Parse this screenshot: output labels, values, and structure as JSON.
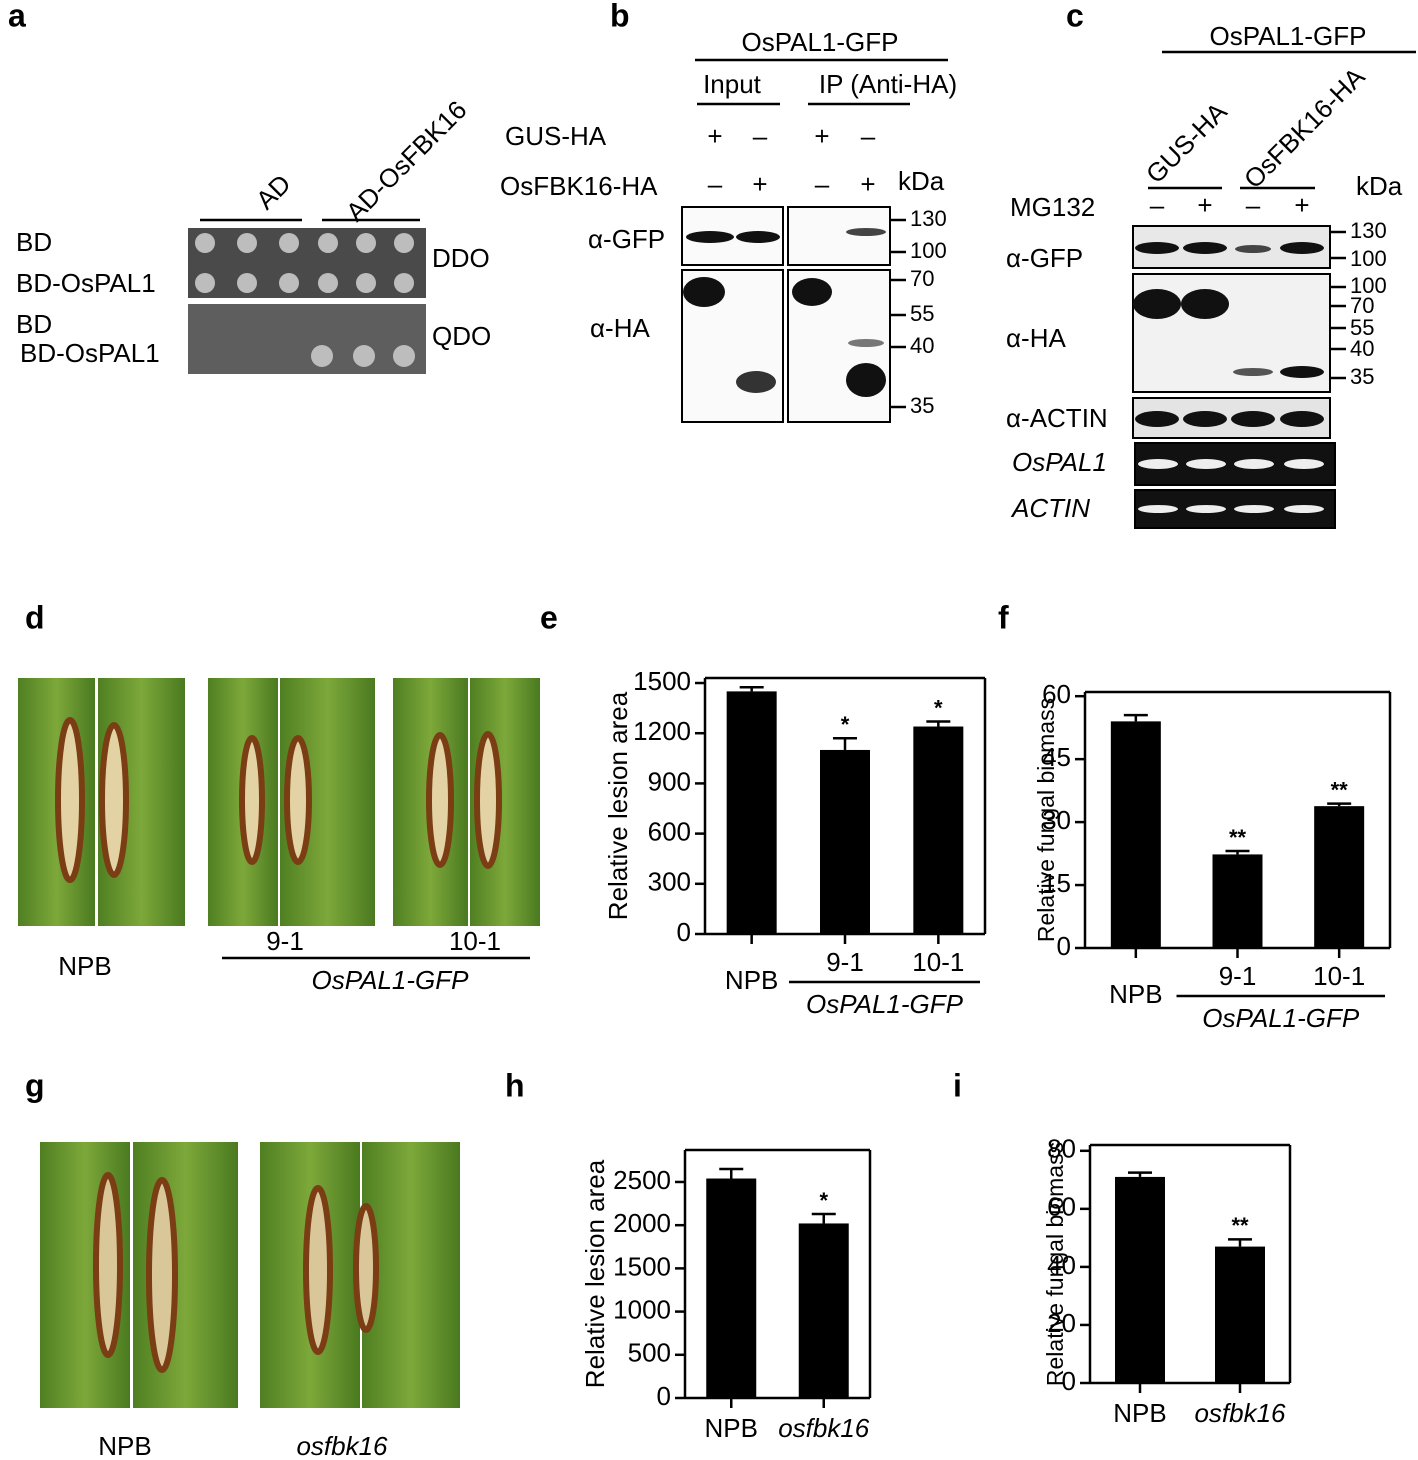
{
  "panel_labels": [
    "a",
    "b",
    "c",
    "d",
    "e",
    "f",
    "g",
    "h",
    "i"
  ],
  "panel_a": {
    "columns": [
      "AD",
      "AD-OsFBK16"
    ],
    "rows_top": [
      "BD",
      "BD-OsPAL1"
    ],
    "medium_top": "DDO",
    "rows_bottom": [
      "BD",
      "BD-OsPAL1"
    ],
    "medium_bottom": "QDO"
  },
  "panel_b": {
    "construct": "OsPAL1-GFP",
    "groups": [
      "Input",
      "IP (Anti-HA)"
    ],
    "rows": [
      {
        "label": "GUS-HA",
        "signs": [
          "+",
          "–",
          "+",
          "–"
        ]
      },
      {
        "label": "OsFBK16-HA",
        "signs": [
          "–",
          "+",
          "–",
          "+"
        ]
      }
    ],
    "unit": "kDa",
    "antibodies": [
      "α-GFP",
      "α-HA"
    ],
    "markers": [
      130,
      100,
      70,
      55,
      40,
      35
    ]
  },
  "panel_c": {
    "construct": "OsPAL1-GFP",
    "groups": [
      "GUS-HA",
      "OsFBK16-HA"
    ],
    "treatment": {
      "label": "MG132",
      "signs": [
        "–",
        "+",
        "–",
        "+"
      ]
    },
    "unit": "kDa",
    "rows": [
      "α-GFP",
      "α-HA",
      "α-ACTIN",
      "OsPAL1",
      "ACTIN"
    ],
    "markers": [
      130,
      100,
      100,
      70,
      55,
      40,
      35
    ]
  },
  "panel_d": {
    "labels": [
      "NPB",
      "9-1",
      "10-1"
    ],
    "group": "OsPAL1-GFP"
  },
  "panel_g": {
    "labels": [
      "NPB",
      "osfbk16"
    ]
  },
  "chart_data": [
    {
      "type": "bar",
      "ylabel": "Relative lesion area",
      "categories": [
        "NPB",
        "9-1",
        "10-1"
      ],
      "group_label": "OsPAL1-GFP",
      "values": [
        1450,
        1100,
        1240
      ],
      "errors": [
        25,
        70,
        30
      ],
      "significance": [
        null,
        "*",
        "*"
      ],
      "ylim": [
        0,
        1530
      ],
      "yticks": [
        0,
        300,
        600,
        900,
        1200,
        1500
      ],
      "color": "#000000"
    },
    {
      "type": "bar",
      "ylabel": "Relative fungal biomass",
      "categories": [
        "NPB",
        "9-1",
        "10-1"
      ],
      "group_label": "OsPAL1-GFP",
      "values": [
        54,
        22.3,
        33.8
      ],
      "errors": [
        1.5,
        0.8,
        0.6
      ],
      "significance": [
        null,
        "**",
        "**"
      ],
      "ylim": [
        0,
        61
      ],
      "yticks": [
        0,
        15,
        30,
        45,
        60
      ],
      "color": "#000000"
    },
    {
      "type": "bar",
      "ylabel": "Relative lesion area",
      "categories": [
        "NPB",
        "osfbk16"
      ],
      "values": [
        2540,
        2020
      ],
      "errors": [
        110,
        110
      ],
      "significance": [
        null,
        "*"
      ],
      "ylim": [
        0,
        2870
      ],
      "yticks": [
        0,
        500,
        1000,
        1500,
        2000,
        2500
      ],
      "color": "#000000"
    },
    {
      "type": "bar",
      "ylabel": "Relative fungal biomass",
      "categories": [
        "NPB",
        "osfbk16"
      ],
      "values": [
        71,
        47
      ],
      "errors": [
        1.5,
        2.5
      ],
      "significance": [
        null,
        "**"
      ],
      "ylim": [
        0,
        82
      ],
      "yticks": [
        0,
        20,
        40,
        60,
        80
      ],
      "color": "#000000"
    }
  ]
}
